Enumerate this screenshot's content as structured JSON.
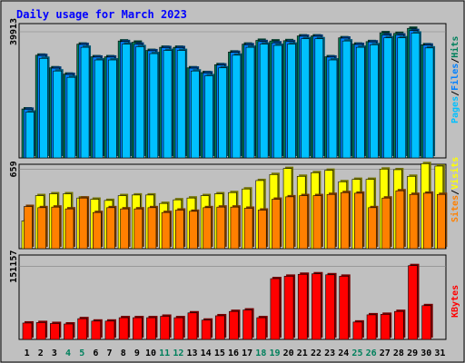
{
  "title": "Daily usage for March 2023",
  "colors": {
    "background": "#C0C0C0",
    "title": "#0000FF",
    "hits": "#00805C",
    "files": "#0080FF",
    "pages": "#00C0FF",
    "visits": "#FFFF00",
    "sites": "#FF8000",
    "kbytes": "#FF0000",
    "weekend_label": "#00805C"
  },
  "chart_data": [
    {
      "type": "bar",
      "panel": "hits-files-pages",
      "ytick_label": "39913",
      "ylim": [
        0,
        42500
      ],
      "legend": [
        "Pages",
        "Files",
        "Hits"
      ],
      "categories": [
        "1",
        "2",
        "3",
        "4",
        "5",
        "6",
        "7",
        "8",
        "9",
        "10",
        "11",
        "12",
        "13",
        "14",
        "15",
        "16",
        "17",
        "18",
        "19",
        "20",
        "21",
        "22",
        "23",
        "24",
        "25",
        "26",
        "27",
        "28",
        "29",
        "30",
        "31"
      ],
      "series": [
        {
          "name": "Hits",
          "values": [
            15500,
            32500,
            28500,
            26500,
            36000,
            32000,
            32000,
            37000,
            36600,
            34000,
            35000,
            35000,
            28500,
            27000,
            29500,
            33500,
            36000,
            37200,
            37000,
            37100,
            38600,
            38600,
            32000,
            38000,
            36000,
            36800,
            39600,
            39400,
            41000,
            35800,
            0
          ]
        },
        {
          "name": "Files",
          "values": [
            15400,
            32400,
            28400,
            26400,
            35900,
            31900,
            31900,
            36800,
            36000,
            33900,
            34900,
            34900,
            28400,
            26900,
            29400,
            33400,
            35800,
            36800,
            36400,
            36800,
            38500,
            38500,
            31900,
            37900,
            35900,
            36700,
            38900,
            38900,
            40300,
            35700,
            0
          ]
        },
        {
          "name": "Pages",
          "values": [
            14500,
            31500,
            27500,
            25500,
            35000,
            31000,
            31000,
            36000,
            35200,
            33000,
            34000,
            34000,
            27500,
            26000,
            28500,
            32500,
            35000,
            36000,
            35600,
            36000,
            37700,
            37700,
            31000,
            37000,
            35000,
            35800,
            38000,
            38000,
            39500,
            34800,
            0
          ]
        }
      ]
    },
    {
      "type": "bar",
      "panel": "visits-sites",
      "ytick_label": "659",
      "ylim": [
        0,
        700
      ],
      "legend": [
        "Sites",
        "Visits"
      ],
      "categories": [
        "1",
        "2",
        "3",
        "4",
        "5",
        "6",
        "7",
        "8",
        "9",
        "10",
        "11",
        "12",
        "13",
        "14",
        "15",
        "16",
        "17",
        "18",
        "19",
        "20",
        "21",
        "22",
        "23",
        "24",
        "25",
        "26",
        "27",
        "28",
        "29",
        "30",
        "31"
      ],
      "series": [
        {
          "name": "Visits",
          "values": [
            230,
            440,
            455,
            455,
            420,
            410,
            400,
            440,
            445,
            445,
            375,
            405,
            420,
            440,
            455,
            465,
            495,
            565,
            615,
            665,
            600,
            630,
            650,
            555,
            575,
            575,
            660,
            655,
            600,
            705,
            685
          ]
        },
        {
          "name": "Sites",
          "values": [
            350,
            340,
            345,
            330,
            420,
            300,
            340,
            330,
            330,
            340,
            300,
            320,
            310,
            340,
            345,
            345,
            335,
            320,
            410,
            430,
            440,
            440,
            450,
            465,
            460,
            340,
            420,
            480,
            450,
            460,
            450
          ]
        }
      ]
    },
    {
      "type": "bar",
      "panel": "kbytes",
      "ytick_label": "151157",
      "ylim": [
        0,
        175000
      ],
      "legend": [
        "KBytes"
      ],
      "categories": [
        "1",
        "2",
        "3",
        "4",
        "5",
        "6",
        "7",
        "8",
        "9",
        "10",
        "11",
        "12",
        "13",
        "14",
        "15",
        "16",
        "17",
        "18",
        "19",
        "20",
        "21",
        "22",
        "23",
        "24",
        "25",
        "26",
        "27",
        "28",
        "29",
        "30",
        "31"
      ],
      "series": [
        {
          "name": "KBytes",
          "values": [
            34000,
            35000,
            33000,
            32000,
            43000,
            38000,
            38000,
            45000,
            45000,
            45000,
            48000,
            45000,
            55000,
            40000,
            49000,
            58000,
            61000,
            45000,
            126000,
            131000,
            135000,
            136000,
            134000,
            131000,
            36000,
            51000,
            52000,
            58000,
            153000,
            70000,
            0
          ]
        }
      ]
    }
  ],
  "day_labels": [
    "1",
    "2",
    "3",
    "4",
    "5",
    "6",
    "7",
    "8",
    "9",
    "10",
    "11",
    "12",
    "13",
    "14",
    "15",
    "16",
    "17",
    "18",
    "19",
    "20",
    "21",
    "22",
    "23",
    "24",
    "25",
    "26",
    "27",
    "28",
    "29",
    "30",
    "31"
  ],
  "weekend_days": [
    4,
    5,
    11,
    12,
    18,
    19,
    25,
    26
  ]
}
